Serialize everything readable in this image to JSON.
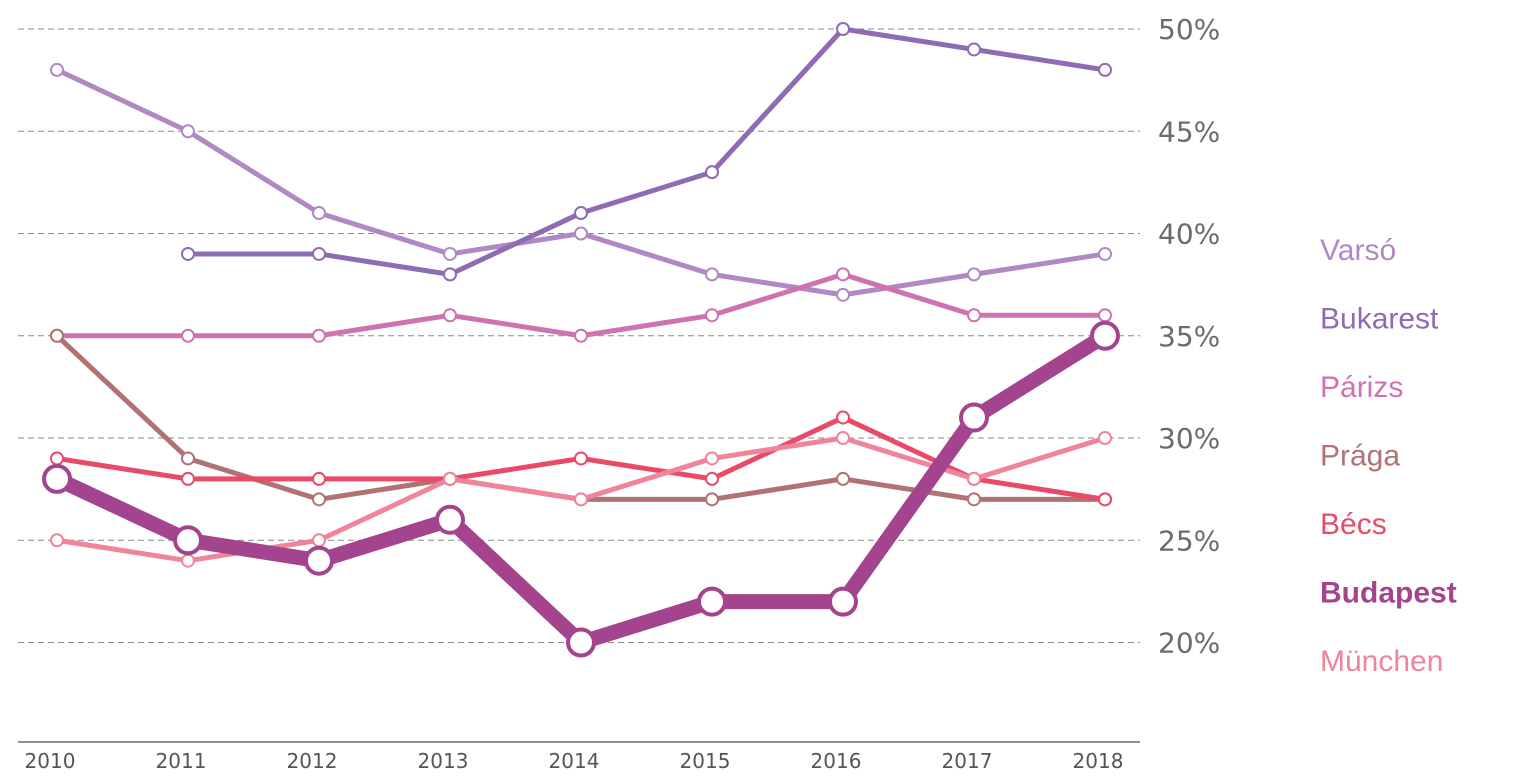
{
  "chart_data": {
    "type": "line",
    "title": "",
    "xlabel": "",
    "ylabel": "",
    "x": [
      "2010",
      "2011",
      "2012",
      "2013",
      "2014",
      "2015",
      "2016",
      "2017",
      "2018"
    ],
    "ylim": [
      15,
      50
    ],
    "y_ticks": [
      "20%",
      "25%",
      "30%",
      "35%",
      "40%",
      "45%",
      "50%"
    ],
    "y_tick_values": [
      20,
      25,
      30,
      35,
      40,
      45,
      50
    ],
    "grid": true,
    "legend_position": "right",
    "series": [
      {
        "name": "Varsó",
        "color": "#b088c4",
        "emphasis": false,
        "values": [
          48,
          45,
          41,
          39,
          40,
          38,
          37,
          38,
          39
        ]
      },
      {
        "name": "Bukarest",
        "color": "#8e6bb3",
        "emphasis": false,
        "values": [
          null,
          39,
          39,
          38,
          41,
          43,
          50,
          49,
          48
        ]
      },
      {
        "name": "Párizs",
        "color": "#cf72b2",
        "emphasis": false,
        "values": [
          35,
          35,
          35,
          36,
          35,
          36,
          38,
          36,
          36
        ]
      },
      {
        "name": "Prága",
        "color": "#b07273",
        "emphasis": false,
        "values": [
          35,
          29,
          27,
          28,
          27,
          27,
          28,
          27,
          27
        ]
      },
      {
        "name": "Bécs",
        "color": "#e84a68",
        "emphasis": false,
        "values": [
          29,
          28,
          28,
          28,
          29,
          28,
          31,
          28,
          27
        ]
      },
      {
        "name": "München",
        "color": "#f0849a",
        "emphasis": false,
        "values": [
          25,
          24,
          25,
          28,
          27,
          29,
          30,
          28,
          30
        ]
      },
      {
        "name": "Budapest",
        "color": "#a4448e",
        "emphasis": true,
        "values": [
          28,
          25,
          24,
          26,
          20,
          22,
          22,
          31,
          35
        ]
      }
    ],
    "legend_order": [
      "Varsó",
      "Bukarest",
      "Párizs",
      "Prága",
      "Bécs",
      "Budapest",
      "München"
    ]
  }
}
